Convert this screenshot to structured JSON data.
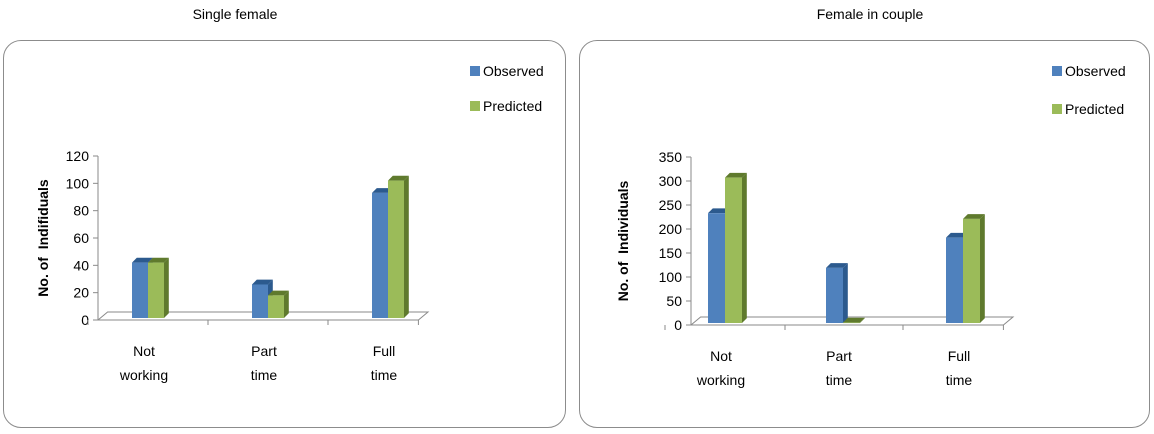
{
  "colors": {
    "observed": "#4f81bd",
    "observed_dark": "#2c5a8e",
    "predicted": "#9bbb59",
    "predicted_dark": "#5f7a2d"
  },
  "chart_data": [
    {
      "type": "bar",
      "title": "Single female",
      "ylabel": "No. of  Indifiduals",
      "xlabel": "",
      "categories": [
        [
          "Not",
          "working"
        ],
        [
          "Part",
          "time"
        ],
        [
          "Full",
          "time"
        ]
      ],
      "series": [
        {
          "name": "Observed",
          "values": [
            42,
            26,
            93
          ]
        },
        {
          "name": "Predicted",
          "values": [
            42,
            18,
            102
          ]
        }
      ],
      "ylim": [
        0,
        120
      ],
      "yticks": [
        "0",
        "20",
        "40",
        "60",
        "80",
        "100",
        "120"
      ],
      "legend": "top-right",
      "grid": false
    },
    {
      "type": "bar",
      "title": "Female in couple",
      "ylabel": "No. of  Individuals",
      "xlabel": "",
      "categories": [
        [
          "Not",
          "working"
        ],
        [
          "Part",
          "time"
        ],
        [
          "Full",
          "time"
        ]
      ],
      "series": [
        {
          "name": "Observed",
          "values": [
            233,
            119,
            182
          ]
        },
        {
          "name": "Predicted",
          "values": [
            307,
            5,
            221
          ]
        }
      ],
      "ylim": [
        0,
        350
      ],
      "yticks": [
        "0",
        "50",
        "100",
        "150",
        "200",
        "250",
        "300",
        "350"
      ],
      "legend": "top-right",
      "grid": false
    }
  ]
}
